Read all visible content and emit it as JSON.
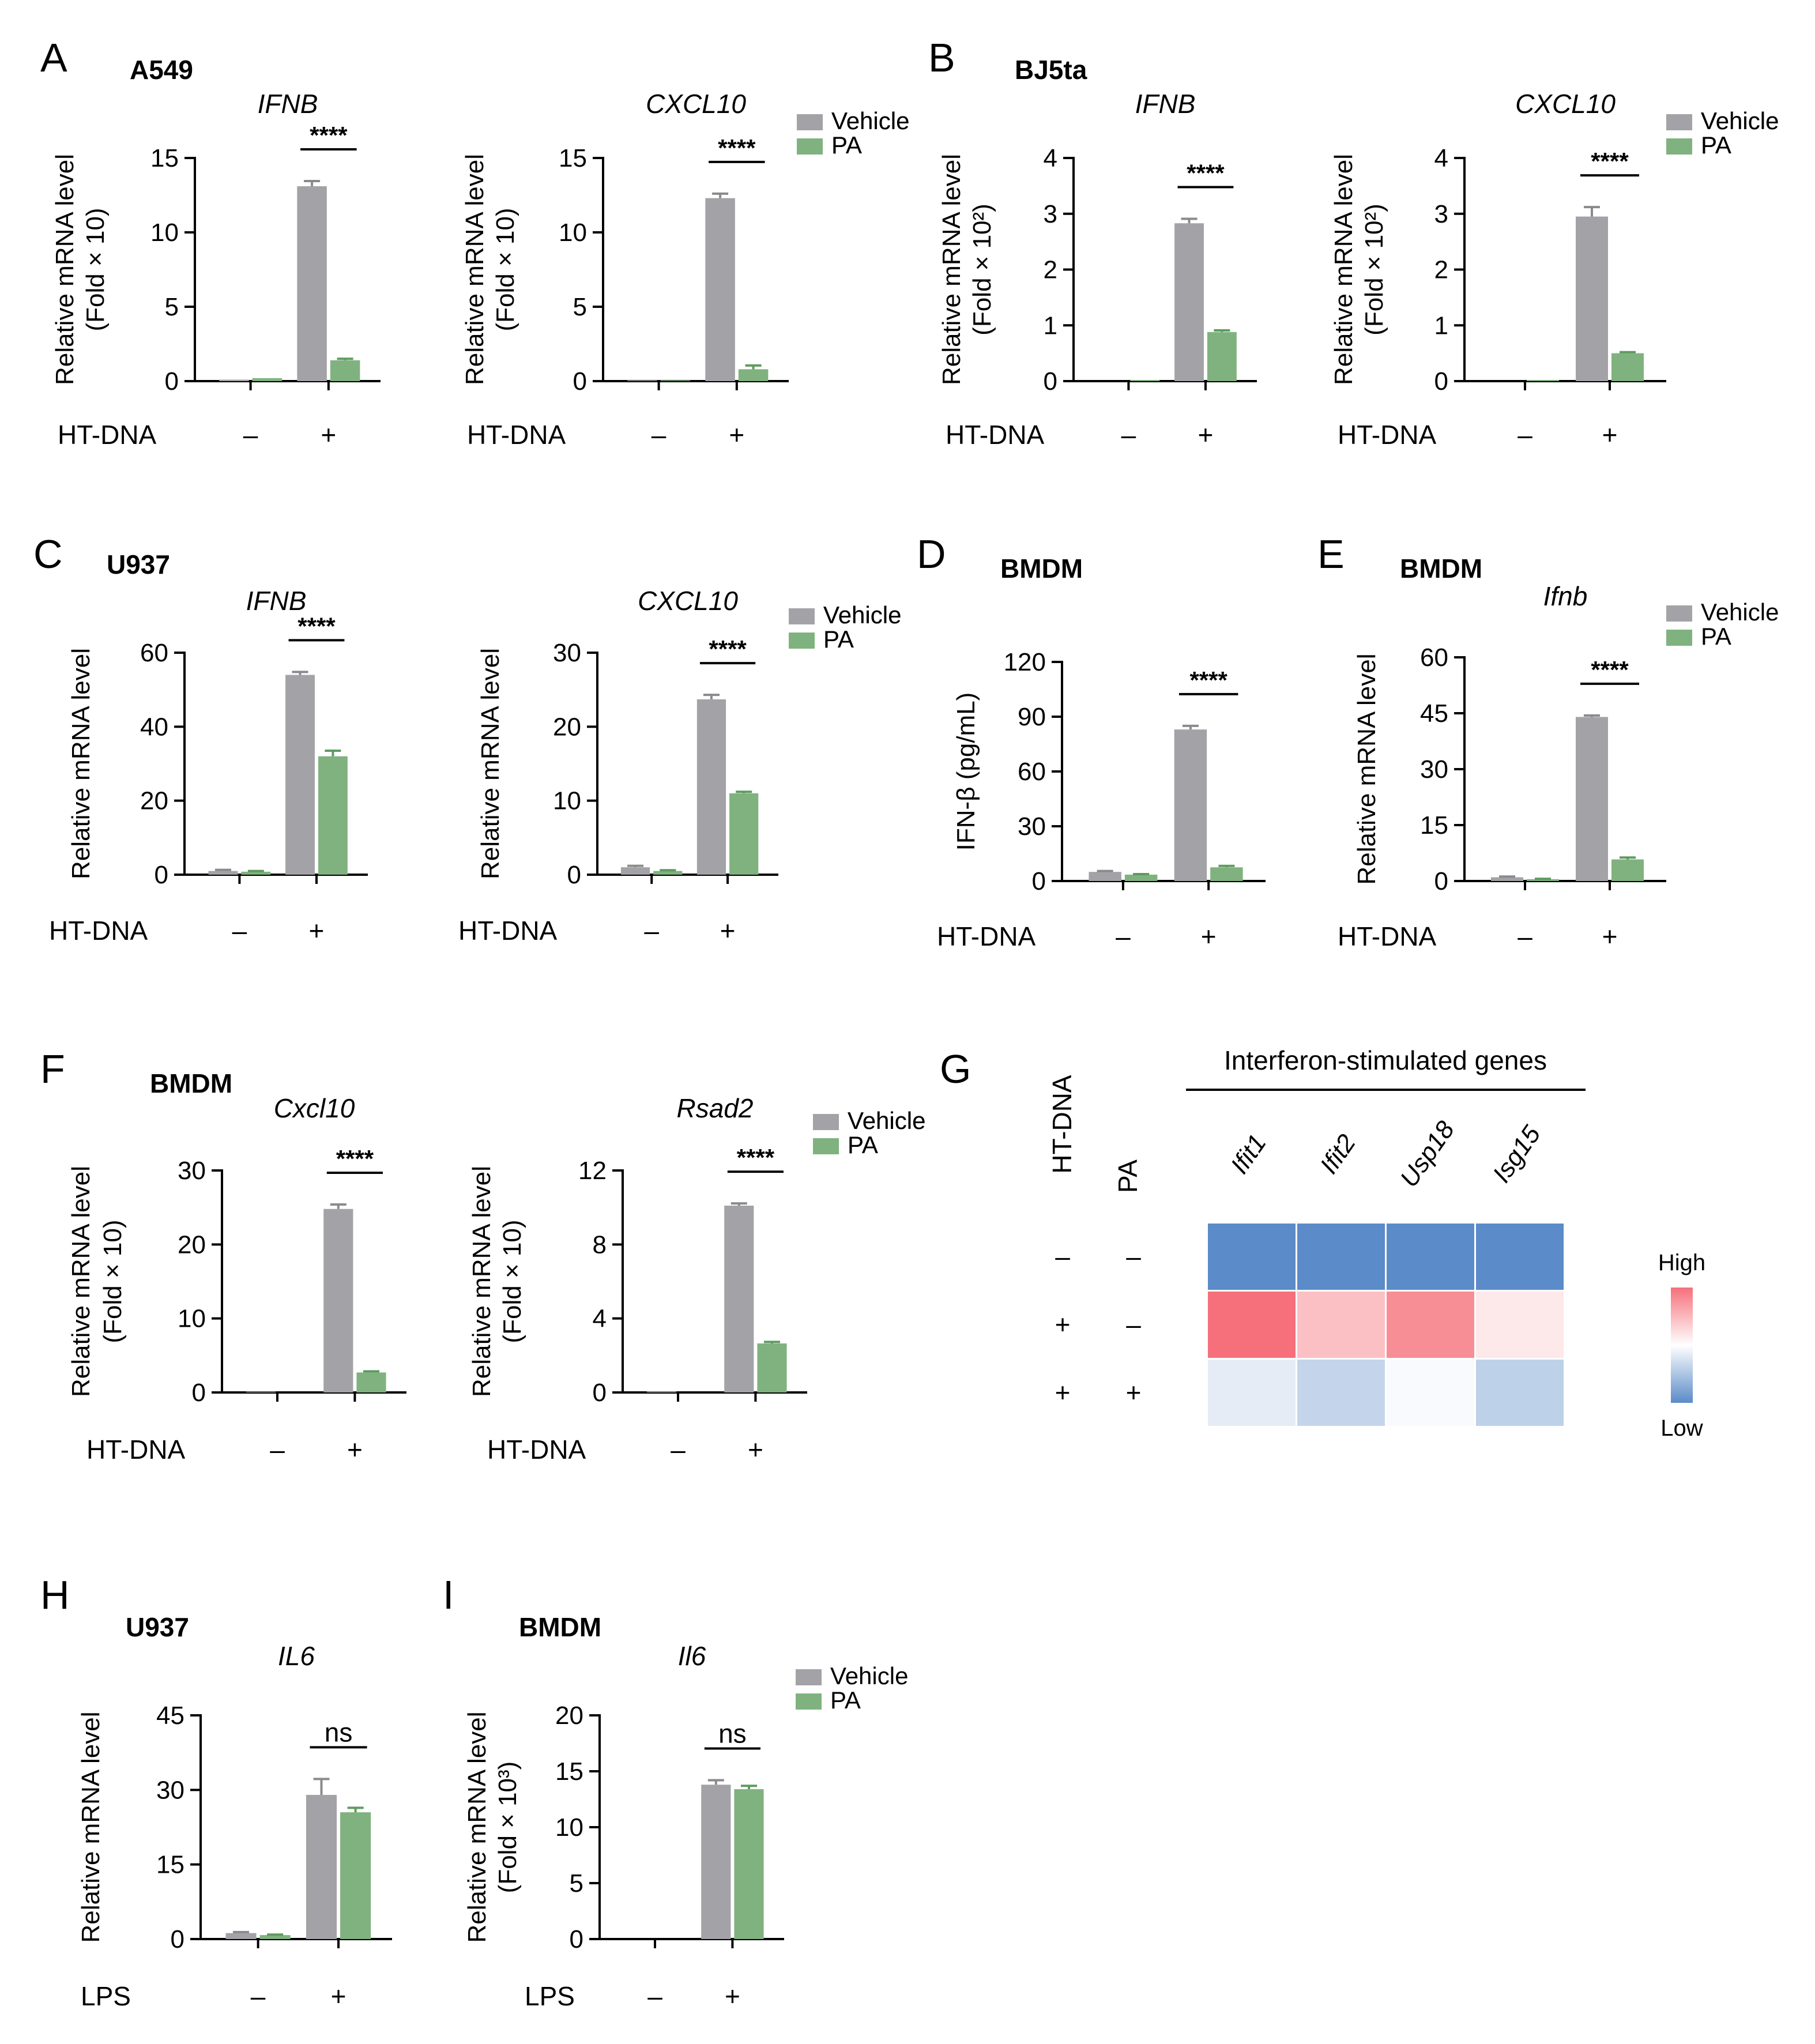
{
  "legend": {
    "vehicle": "Vehicle",
    "pa": "PA"
  },
  "colors": {
    "vehicle": "#a3a3a7",
    "pa": "#7fb27f",
    "high": "#f5707a",
    "low": "#5b8bc8"
  },
  "stimuli": {
    "htdna": "HT-DNA",
    "lps": "LPS",
    "minus": "–",
    "plus": "+"
  },
  "panels": [
    {
      "letter": "A",
      "cell": "A549"
    },
    {
      "letter": "B",
      "cell": "BJ5ta"
    },
    {
      "letter": "C",
      "cell": "U937"
    },
    {
      "letter": "D",
      "cell": "BMDM"
    },
    {
      "letter": "E",
      "cell": "BMDM"
    },
    {
      "letter": "F",
      "cell": "BMDM"
    },
    {
      "letter": "G",
      "cell": ""
    },
    {
      "letter": "H",
      "cell": "U937"
    },
    {
      "letter": "I",
      "cell": "BMDM"
    }
  ],
  "chart_data": [
    {
      "id": "A1",
      "type": "bar",
      "title": "IFNB",
      "ylabel": "Relative mRNA level",
      "ylabel2": "(Fold × 10)",
      "ylim": [
        0,
        15
      ],
      "yticks": [
        0,
        5,
        10,
        15
      ],
      "stimulus": "HT-DNA",
      "categories": [
        "–",
        "+"
      ],
      "series": [
        {
          "name": "Vehicle",
          "values": [
            0.1,
            13.1
          ],
          "err": [
            0,
            0.35
          ]
        },
        {
          "name": "PA",
          "values": [
            0.2,
            1.4
          ],
          "err": [
            0,
            0.1
          ]
        }
      ],
      "significance": "****",
      "legend": true
    },
    {
      "id": "A2",
      "type": "bar",
      "title": "CXCL10",
      "ylabel": "Relative mRNA level",
      "ylabel2": "(Fold × 10)",
      "ylim": [
        0,
        15
      ],
      "yticks": [
        0,
        5,
        10,
        15
      ],
      "stimulus": "HT-DNA",
      "categories": [
        "–",
        "+"
      ],
      "series": [
        {
          "name": "Vehicle",
          "values": [
            0.05,
            12.3
          ],
          "err": [
            0,
            0.3
          ]
        },
        {
          "name": "PA",
          "values": [
            0.05,
            0.8
          ],
          "err": [
            0,
            0.25
          ]
        }
      ],
      "significance": "****",
      "legend": true
    },
    {
      "id": "B1",
      "type": "bar",
      "title": "IFNB",
      "ylabel": "Relative mRNA level",
      "ylabel2": "(Fold × 10²)",
      "ylim": [
        0,
        4
      ],
      "yticks": [
        0,
        1,
        2,
        3,
        4
      ],
      "stimulus": "HT-DNA",
      "categories": [
        "–",
        "+"
      ],
      "series": [
        {
          "name": "Vehicle",
          "values": [
            0,
            2.83
          ],
          "err": [
            0,
            0.08
          ]
        },
        {
          "name": "PA",
          "values": [
            0.02,
            0.88
          ],
          "err": [
            0,
            0.03
          ]
        }
      ],
      "significance": "****",
      "legend": true
    },
    {
      "id": "B2",
      "type": "bar",
      "title": "CXCL10",
      "ylabel": "Relative mRNA level",
      "ylabel2": "(Fold × 10²)",
      "ylim": [
        0,
        4
      ],
      "yticks": [
        0,
        1,
        2,
        3,
        4
      ],
      "stimulus": "HT-DNA",
      "categories": [
        "–",
        "+"
      ],
      "series": [
        {
          "name": "Vehicle",
          "values": [
            0,
            2.95
          ],
          "err": [
            0,
            0.17
          ]
        },
        {
          "name": "PA",
          "values": [
            0.02,
            0.5
          ],
          "err": [
            0,
            0.02
          ]
        }
      ],
      "significance": "****",
      "legend": true
    },
    {
      "id": "C1",
      "type": "bar",
      "title": "IFNB",
      "ylabel": "Relative mRNA level",
      "ylabel2": "",
      "ylim": [
        0,
        60
      ],
      "yticks": [
        0,
        20,
        40,
        60
      ],
      "stimulus": "HT-DNA",
      "categories": [
        "–",
        "+"
      ],
      "series": [
        {
          "name": "Vehicle",
          "values": [
            1,
            54
          ],
          "err": [
            0.3,
            0.8
          ]
        },
        {
          "name": "PA",
          "values": [
            0.8,
            32
          ],
          "err": [
            0.2,
            1.5
          ]
        }
      ],
      "significance": "****",
      "legend": true
    },
    {
      "id": "C2",
      "type": "bar",
      "title": "CXCL10",
      "ylabel": "Relative mRNA level",
      "ylabel2": "",
      "ylim": [
        0,
        30
      ],
      "yticks": [
        0,
        10,
        20,
        30
      ],
      "stimulus": "HT-DNA",
      "categories": [
        "–",
        "+"
      ],
      "series": [
        {
          "name": "Vehicle",
          "values": [
            1,
            23.7
          ],
          "err": [
            0.2,
            0.6
          ]
        },
        {
          "name": "PA",
          "values": [
            0.5,
            11
          ],
          "err": [
            0.1,
            0.2
          ]
        }
      ],
      "significance": "****",
      "legend": true
    },
    {
      "id": "D",
      "type": "bar",
      "title": "",
      "ylabel": "IFN-β (pg/mL)",
      "ylabel2": "",
      "ylim": [
        0,
        120
      ],
      "yticks": [
        0,
        30,
        60,
        90,
        120
      ],
      "stimulus": "HT-DNA",
      "categories": [
        "–",
        "+"
      ],
      "series": [
        {
          "name": "Vehicle",
          "values": [
            5,
            83
          ],
          "err": [
            0.5,
            2
          ]
        },
        {
          "name": "PA",
          "values": [
            3.5,
            7.5
          ],
          "err": [
            0.3,
            0.8
          ]
        }
      ],
      "significance": "****",
      "legend": false
    },
    {
      "id": "E",
      "type": "bar",
      "title": "Ifnb",
      "ylabel": "Relative mRNA level",
      "ylabel2": "",
      "ylim": [
        0,
        60
      ],
      "yticks": [
        0,
        15,
        30,
        45,
        60
      ],
      "stimulus": "HT-DNA",
      "categories": [
        "–",
        "+"
      ],
      "series": [
        {
          "name": "Vehicle",
          "values": [
            1,
            44
          ],
          "err": [
            0.2,
            0.4
          ]
        },
        {
          "name": "PA",
          "values": [
            0.5,
            5.8
          ],
          "err": [
            0.1,
            0.5
          ]
        }
      ],
      "significance": "****",
      "legend": true
    },
    {
      "id": "F1",
      "type": "bar",
      "title": "Cxcl10",
      "ylabel": "Relative mRNA level",
      "ylabel2": "(Fold × 10)",
      "ylim": [
        0,
        30
      ],
      "yticks": [
        0,
        10,
        20,
        30
      ],
      "stimulus": "HT-DNA",
      "categories": [
        "–",
        "+"
      ],
      "series": [
        {
          "name": "Vehicle",
          "values": [
            0.1,
            24.8
          ],
          "err": [
            0,
            0.6
          ]
        },
        {
          "name": "PA",
          "values": [
            0,
            2.7
          ],
          "err": [
            0,
            0.15
          ]
        }
      ],
      "significance": "****",
      "legend": true
    },
    {
      "id": "F2",
      "type": "bar",
      "title": "Rsad2",
      "ylabel": "Relative mRNA level",
      "ylabel2": "(Fold × 10)",
      "ylim": [
        0,
        12
      ],
      "yticks": [
        0,
        4,
        8,
        12
      ],
      "stimulus": "HT-DNA",
      "categories": [
        "–",
        "+"
      ],
      "series": [
        {
          "name": "Vehicle",
          "values": [
            0.05,
            10.1
          ],
          "err": [
            0,
            0.12
          ]
        },
        {
          "name": "PA",
          "values": [
            0,
            2.65
          ],
          "err": [
            0,
            0.08
          ]
        }
      ],
      "significance": "****",
      "legend": true
    },
    {
      "id": "H",
      "type": "bar",
      "title": "IL6",
      "ylabel": "Relative mRNA level",
      "ylabel2": "",
      "ylim": [
        0,
        45
      ],
      "yticks": [
        0,
        15,
        30,
        45
      ],
      "stimulus": "LPS",
      "categories": [
        "–",
        "+"
      ],
      "series": [
        {
          "name": "Vehicle",
          "values": [
            1.2,
            29
          ],
          "err": [
            0.2,
            3.2
          ]
        },
        {
          "name": "PA",
          "values": [
            0.8,
            25.5
          ],
          "err": [
            0.1,
            0.9
          ]
        }
      ],
      "significance": "ns",
      "legend": false
    },
    {
      "id": "I",
      "type": "bar",
      "title": "Il6",
      "ylabel": "Relative mRNA level",
      "ylabel2": "(Fold × 10³)",
      "ylim": [
        0,
        20
      ],
      "yticks": [
        0,
        5,
        10,
        15,
        20
      ],
      "stimulus": "LPS",
      "categories": [
        "–",
        "+"
      ],
      "series": [
        {
          "name": "Vehicle",
          "values": [
            0,
            13.8
          ],
          "err": [
            0,
            0.4
          ]
        },
        {
          "name": "PA",
          "values": [
            0,
            13.4
          ],
          "err": [
            0,
            0.3
          ]
        }
      ],
      "significance": "ns",
      "legend": true
    },
    {
      "id": "G",
      "type": "heatmap",
      "title": "Interferon-stimulated genes",
      "row_headers": [
        "HT-DNA",
        "PA"
      ],
      "rows": [
        [
          "–",
          "–"
        ],
        [
          "+",
          "–"
        ],
        [
          "+",
          "+"
        ]
      ],
      "columns": [
        "Ifit1",
        "Ifit2",
        "Usp18",
        "Isg15"
      ],
      "values": [
        [
          0,
          0,
          0,
          0
        ],
        [
          1.0,
          0.72,
          0.9,
          0.58
        ],
        [
          0.42,
          0.32,
          0.48,
          0.3
        ]
      ],
      "scale_high": "High",
      "scale_low": "Low"
    }
  ]
}
